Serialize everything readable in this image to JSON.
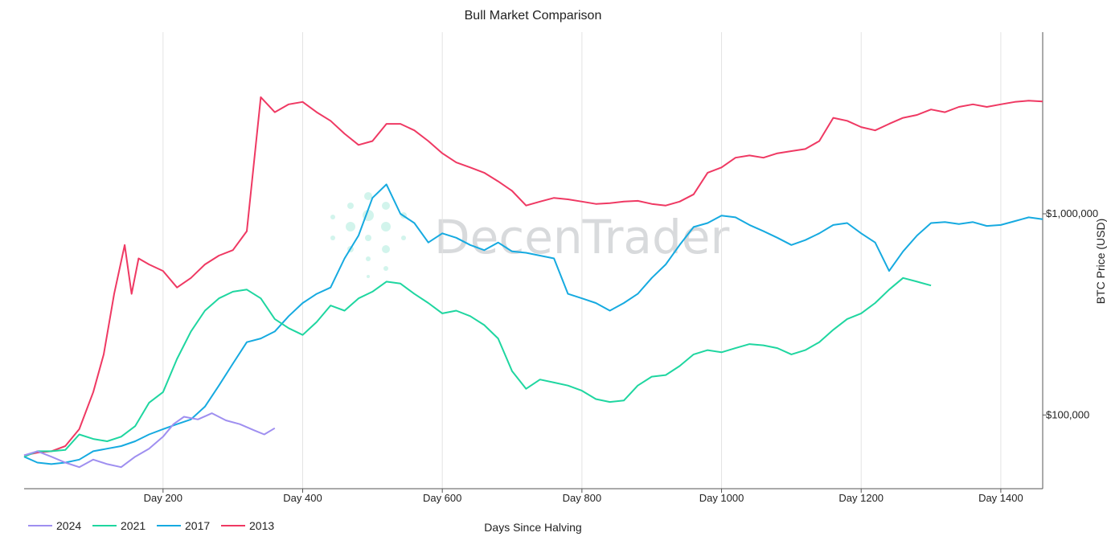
{
  "chart_data": {
    "type": "line",
    "title": "Bull Market Comparison",
    "xlabel": "Days Since Halving",
    "ylabel": "BTC Price (USD)",
    "y_scale": "log",
    "xlim": [
      1,
      1460
    ],
    "ylim": [
      43000,
      8000000
    ],
    "x_ticks": [
      {
        "value": 200,
        "label": "Day 200"
      },
      {
        "value": 400,
        "label": "Day 400"
      },
      {
        "value": 600,
        "label": "Day 600"
      },
      {
        "value": 800,
        "label": "Day 800"
      },
      {
        "value": 1000,
        "label": "Day 1000"
      },
      {
        "value": 1200,
        "label": "Day 1200"
      },
      {
        "value": 1400,
        "label": "Day 1400"
      }
    ],
    "y_ticks": [
      {
        "value": 100000,
        "label": "$100,000"
      },
      {
        "value": 1000000,
        "label": "$1,000,000"
      }
    ],
    "grid": {
      "x": true,
      "y": false
    },
    "legend_position": "bottom-left",
    "watermark": "DecenTrader",
    "series": [
      {
        "name": "2024",
        "color": "#9f8ff0",
        "points": [
          [
            1,
            63000
          ],
          [
            20,
            66000
          ],
          [
            40,
            62000
          ],
          [
            60,
            58000
          ],
          [
            80,
            55000
          ],
          [
            100,
            60000
          ],
          [
            120,
            57000
          ],
          [
            140,
            55000
          ],
          [
            160,
            62000
          ],
          [
            180,
            68000
          ],
          [
            200,
            78000
          ],
          [
            215,
            90000
          ],
          [
            230,
            98000
          ],
          [
            250,
            95000
          ],
          [
            270,
            102000
          ],
          [
            290,
            94000
          ],
          [
            310,
            90000
          ],
          [
            330,
            84000
          ],
          [
            345,
            80000
          ],
          [
            360,
            86000
          ]
        ]
      },
      {
        "name": "2021",
        "color": "#1fd6a0",
        "points": [
          [
            1,
            62000
          ],
          [
            20,
            66000
          ],
          [
            40,
            66000
          ],
          [
            60,
            67000
          ],
          [
            80,
            80000
          ],
          [
            100,
            76000
          ],
          [
            120,
            74000
          ],
          [
            140,
            78000
          ],
          [
            160,
            88000
          ],
          [
            180,
            115000
          ],
          [
            200,
            130000
          ],
          [
            220,
            190000
          ],
          [
            240,
            260000
          ],
          [
            260,
            330000
          ],
          [
            280,
            380000
          ],
          [
            300,
            410000
          ],
          [
            320,
            420000
          ],
          [
            340,
            380000
          ],
          [
            360,
            300000
          ],
          [
            380,
            270000
          ],
          [
            400,
            250000
          ],
          [
            420,
            290000
          ],
          [
            440,
            350000
          ],
          [
            460,
            330000
          ],
          [
            480,
            380000
          ],
          [
            500,
            410000
          ],
          [
            520,
            460000
          ],
          [
            540,
            450000
          ],
          [
            560,
            400000
          ],
          [
            580,
            360000
          ],
          [
            600,
            320000
          ],
          [
            620,
            330000
          ],
          [
            640,
            310000
          ],
          [
            660,
            280000
          ],
          [
            680,
            240000
          ],
          [
            700,
            165000
          ],
          [
            720,
            135000
          ],
          [
            740,
            150000
          ],
          [
            760,
            145000
          ],
          [
            780,
            140000
          ],
          [
            800,
            132000
          ],
          [
            820,
            120000
          ],
          [
            840,
            116000
          ],
          [
            860,
            118000
          ],
          [
            880,
            140000
          ],
          [
            900,
            155000
          ],
          [
            920,
            158000
          ],
          [
            940,
            175000
          ],
          [
            960,
            200000
          ],
          [
            980,
            210000
          ],
          [
            1000,
            205000
          ],
          [
            1020,
            215000
          ],
          [
            1040,
            225000
          ],
          [
            1060,
            222000
          ],
          [
            1080,
            215000
          ],
          [
            1100,
            200000
          ],
          [
            1120,
            210000
          ],
          [
            1140,
            230000
          ],
          [
            1160,
            265000
          ],
          [
            1180,
            300000
          ],
          [
            1200,
            320000
          ],
          [
            1220,
            360000
          ],
          [
            1240,
            420000
          ],
          [
            1260,
            480000
          ],
          [
            1280,
            460000
          ],
          [
            1300,
            440000
          ]
        ]
      },
      {
        "name": "2017",
        "color": "#16aae0",
        "points": [
          [
            1,
            62000
          ],
          [
            20,
            58000
          ],
          [
            40,
            57000
          ],
          [
            60,
            58000
          ],
          [
            80,
            60000
          ],
          [
            100,
            66000
          ],
          [
            120,
            68000
          ],
          [
            140,
            70000
          ],
          [
            160,
            74000
          ],
          [
            180,
            80000
          ],
          [
            200,
            85000
          ],
          [
            220,
            90000
          ],
          [
            240,
            95000
          ],
          [
            260,
            110000
          ],
          [
            280,
            140000
          ],
          [
            300,
            180000
          ],
          [
            320,
            230000
          ],
          [
            340,
            240000
          ],
          [
            360,
            260000
          ],
          [
            380,
            310000
          ],
          [
            400,
            360000
          ],
          [
            420,
            400000
          ],
          [
            440,
            430000
          ],
          [
            460,
            600000
          ],
          [
            480,
            780000
          ],
          [
            500,
            1200000
          ],
          [
            520,
            1400000
          ],
          [
            540,
            1000000
          ],
          [
            560,
            900000
          ],
          [
            580,
            720000
          ],
          [
            600,
            800000
          ],
          [
            620,
            760000
          ],
          [
            640,
            700000
          ],
          [
            660,
            660000
          ],
          [
            680,
            720000
          ],
          [
            700,
            650000
          ],
          [
            720,
            640000
          ],
          [
            740,
            620000
          ],
          [
            760,
            600000
          ],
          [
            780,
            400000
          ],
          [
            800,
            380000
          ],
          [
            820,
            360000
          ],
          [
            840,
            330000
          ],
          [
            860,
            360000
          ],
          [
            880,
            400000
          ],
          [
            900,
            480000
          ],
          [
            920,
            560000
          ],
          [
            940,
            700000
          ],
          [
            960,
            860000
          ],
          [
            980,
            900000
          ],
          [
            1000,
            980000
          ],
          [
            1020,
            960000
          ],
          [
            1040,
            880000
          ],
          [
            1060,
            820000
          ],
          [
            1080,
            760000
          ],
          [
            1100,
            700000
          ],
          [
            1120,
            740000
          ],
          [
            1140,
            800000
          ],
          [
            1160,
            880000
          ],
          [
            1180,
            900000
          ],
          [
            1200,
            800000
          ],
          [
            1220,
            720000
          ],
          [
            1240,
            520000
          ],
          [
            1260,
            650000
          ],
          [
            1280,
            780000
          ],
          [
            1300,
            900000
          ],
          [
            1320,
            910000
          ],
          [
            1340,
            890000
          ],
          [
            1360,
            910000
          ],
          [
            1380,
            870000
          ],
          [
            1400,
            880000
          ],
          [
            1420,
            920000
          ],
          [
            1440,
            960000
          ],
          [
            1460,
            940000
          ]
        ]
      },
      {
        "name": "2013",
        "color": "#ef3963",
        "points": [
          [
            1,
            63000
          ],
          [
            20,
            65000
          ],
          [
            40,
            66000
          ],
          [
            60,
            70000
          ],
          [
            80,
            85000
          ],
          [
            100,
            130000
          ],
          [
            115,
            200000
          ],
          [
            130,
            400000
          ],
          [
            145,
            700000
          ],
          [
            155,
            400000
          ],
          [
            165,
            600000
          ],
          [
            180,
            560000
          ],
          [
            200,
            520000
          ],
          [
            220,
            430000
          ],
          [
            240,
            480000
          ],
          [
            260,
            560000
          ],
          [
            280,
            620000
          ],
          [
            300,
            660000
          ],
          [
            320,
            820000
          ],
          [
            340,
            3800000
          ],
          [
            360,
            3200000
          ],
          [
            380,
            3500000
          ],
          [
            400,
            3600000
          ],
          [
            420,
            3200000
          ],
          [
            440,
            2900000
          ],
          [
            460,
            2500000
          ],
          [
            480,
            2200000
          ],
          [
            500,
            2300000
          ],
          [
            520,
            2800000
          ],
          [
            540,
            2800000
          ],
          [
            560,
            2600000
          ],
          [
            580,
            2300000
          ],
          [
            600,
            2000000
          ],
          [
            620,
            1800000
          ],
          [
            640,
            1700000
          ],
          [
            660,
            1600000
          ],
          [
            680,
            1450000
          ],
          [
            700,
            1300000
          ],
          [
            720,
            1100000
          ],
          [
            740,
            1150000
          ],
          [
            760,
            1200000
          ],
          [
            780,
            1180000
          ],
          [
            800,
            1150000
          ],
          [
            820,
            1120000
          ],
          [
            840,
            1130000
          ],
          [
            860,
            1150000
          ],
          [
            880,
            1160000
          ],
          [
            900,
            1120000
          ],
          [
            920,
            1100000
          ],
          [
            940,
            1150000
          ],
          [
            960,
            1250000
          ],
          [
            980,
            1600000
          ],
          [
            1000,
            1700000
          ],
          [
            1020,
            1900000
          ],
          [
            1040,
            1950000
          ],
          [
            1060,
            1900000
          ],
          [
            1080,
            2000000
          ],
          [
            1100,
            2050000
          ],
          [
            1120,
            2100000
          ],
          [
            1140,
            2300000
          ],
          [
            1160,
            3000000
          ],
          [
            1180,
            2900000
          ],
          [
            1200,
            2700000
          ],
          [
            1220,
            2600000
          ],
          [
            1240,
            2800000
          ],
          [
            1260,
            3000000
          ],
          [
            1280,
            3100000
          ],
          [
            1300,
            3300000
          ],
          [
            1320,
            3200000
          ],
          [
            1340,
            3400000
          ],
          [
            1360,
            3500000
          ],
          [
            1380,
            3400000
          ],
          [
            1400,
            3500000
          ],
          [
            1420,
            3600000
          ],
          [
            1440,
            3650000
          ],
          [
            1460,
            3620000
          ]
        ]
      }
    ]
  }
}
